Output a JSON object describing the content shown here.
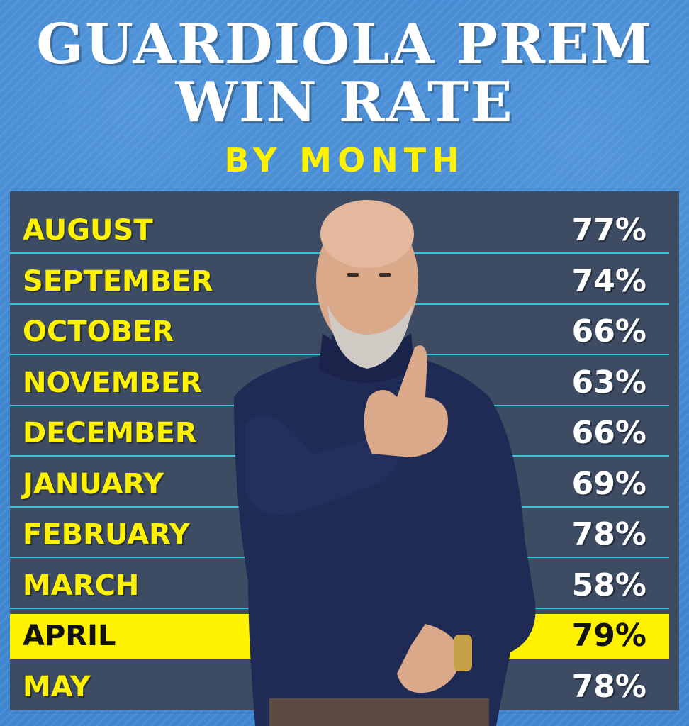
{
  "title": {
    "line1": "GUARDIOLA PREM",
    "line2": "WIN RATE"
  },
  "subtitle": "BY MONTH",
  "colors": {
    "background": "#3f86cf",
    "panel": "#3d4b63",
    "month_text": "#fff200",
    "value_text": "#ffffff",
    "highlight": "#fff200",
    "divider": "#36c6d8"
  },
  "chart_data": {
    "type": "table",
    "title": "GUARDIOLA PREM WIN RATE",
    "subtitle": "BY MONTH",
    "highlighted": "APRIL",
    "rows": [
      {
        "month": "AUGUST",
        "win_rate": 77,
        "label": "77%"
      },
      {
        "month": "SEPTEMBER",
        "win_rate": 74,
        "label": "74%"
      },
      {
        "month": "OCTOBER",
        "win_rate": 66,
        "label": "66%"
      },
      {
        "month": "NOVEMBER",
        "win_rate": 63,
        "label": "63%"
      },
      {
        "month": "DECEMBER",
        "win_rate": 66,
        "label": "66%"
      },
      {
        "month": "JANUARY",
        "win_rate": 69,
        "label": "69%"
      },
      {
        "month": "FEBRUARY",
        "win_rate": 78,
        "label": "78%"
      },
      {
        "month": "MARCH",
        "win_rate": 58,
        "label": "58%"
      },
      {
        "month": "APRIL",
        "win_rate": 79,
        "label": "79%"
      },
      {
        "month": "MAY",
        "win_rate": 78,
        "label": "78%"
      }
    ]
  }
}
